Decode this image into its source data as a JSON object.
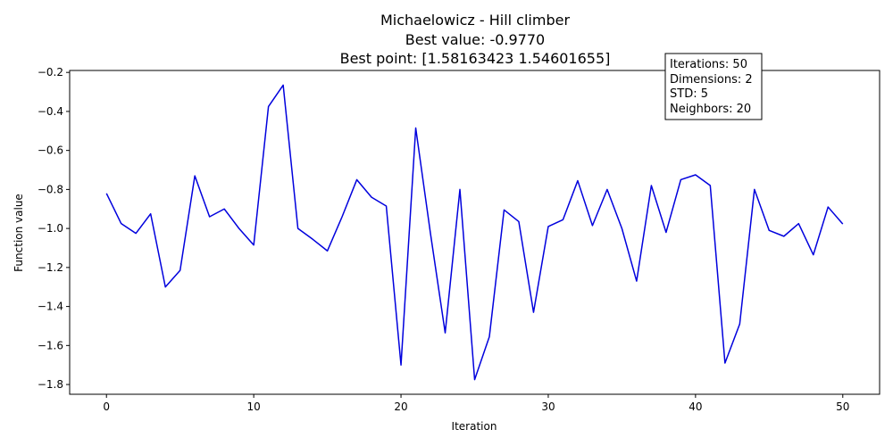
{
  "chart_data": {
    "type": "line",
    "title_lines": [
      "Michaelowicz - Hill climber",
      "Best value: -0.9770",
      "Best point: [1.58163423 1.54601655]"
    ],
    "xlabel": "Iteration",
    "ylabel": "Function value",
    "xlim": [
      -2.5,
      52.5
    ],
    "ylim": [
      -1.85,
      -0.19
    ],
    "xticks": [
      0,
      10,
      20,
      30,
      40,
      50
    ],
    "xtick_labels": [
      "0",
      "10",
      "20",
      "30",
      "40",
      "50"
    ],
    "yticks": [
      -1.8,
      -1.6,
      -1.4,
      -1.2,
      -1.0,
      -0.8,
      -0.6,
      -0.4,
      -0.2
    ],
    "ytick_labels": [
      "−1.8",
      "−1.6",
      "−1.4",
      "−1.2",
      "−1.0",
      "−0.8",
      "−0.6",
      "−0.4",
      "−0.2"
    ],
    "grid": false,
    "line_color": "#0000dd",
    "series": [
      {
        "x": [
          0,
          1,
          2,
          3,
          4,
          5,
          6,
          7,
          8,
          9,
          10,
          11,
          12,
          13,
          14,
          15,
          16,
          17,
          18,
          19,
          20,
          21,
          22,
          23,
          24,
          25,
          26,
          27,
          28,
          29,
          30,
          31,
          32,
          33,
          34,
          35,
          36,
          37,
          38,
          39,
          40,
          41,
          42,
          43,
          44,
          45,
          46,
          47,
          48,
          49,
          50
        ],
        "values": [
          -0.82,
          -0.975,
          -1.025,
          -0.925,
          -1.3,
          -1.215,
          -0.73,
          -0.94,
          -0.9,
          -1.0,
          -1.085,
          -0.375,
          -0.265,
          -1.0,
          -1.055,
          -1.115,
          -0.94,
          -0.75,
          -0.84,
          -0.885,
          -1.7,
          -0.485,
          -1.025,
          -1.535,
          -0.8,
          -1.775,
          -1.555,
          -0.905,
          -0.965,
          -1.43,
          -0.99,
          -0.955,
          -0.755,
          -0.985,
          -0.8,
          -1.0,
          -1.27,
          -0.78,
          -1.02,
          -0.75,
          -0.725,
          -0.78,
          -1.69,
          -1.49,
          -0.8,
          -1.01,
          -1.04,
          -0.975,
          -1.135,
          -0.89,
          -0.977
        ]
      }
    ],
    "info_box": [
      "Iterations: 50",
      "Dimensions: 2",
      "STD: 5",
      "Neighbors: 20"
    ]
  }
}
